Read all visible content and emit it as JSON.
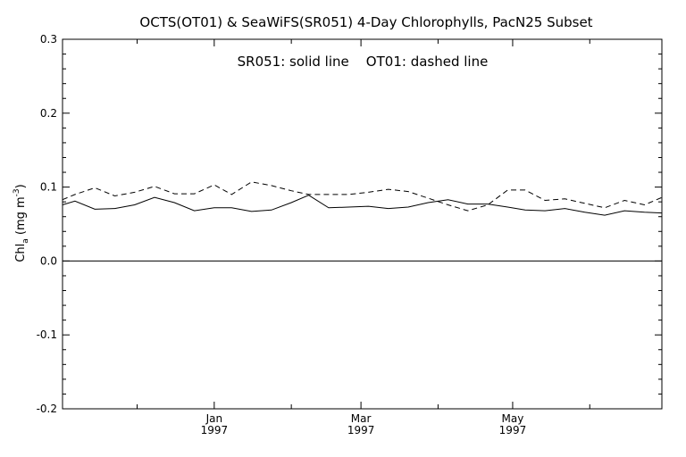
{
  "chart_data": {
    "type": "line",
    "title": "OCTS(OT01) & SeaWiFS(SR051) 4-Day Chlorophylls, PacN25 Subset",
    "annotation": "SR051: solid line    OT01: dashed line",
    "ylabel": {
      "main": "Chl",
      "sub": "a",
      "unit": "(mg m",
      "sup": "-3",
      "close": ")"
    },
    "ylim": [
      -0.2,
      0.3
    ],
    "xlim": [
      "1996-11-01",
      "1997-06-30"
    ],
    "yticks": [
      {
        "value": 0.3,
        "label": "0.3"
      },
      {
        "value": 0.2,
        "label": "0.2"
      },
      {
        "value": 0.1,
        "label": "0.1"
      },
      {
        "value": 0.0,
        "label": "0.0"
      },
      {
        "value": -0.1,
        "label": "-0.1"
      },
      {
        "value": -0.2,
        "label": "-0.2"
      }
    ],
    "xticks_major": [
      {
        "date": "1997-01-01",
        "month": "Jan",
        "year": "1997"
      },
      {
        "date": "1997-03-01",
        "month": "Mar",
        "year": "1997"
      },
      {
        "date": "1997-05-01",
        "month": "May",
        "year": "1997"
      }
    ],
    "xticks_minor": [
      "1996-12-01",
      "1997-02-01",
      "1997-04-01",
      "1997-06-01"
    ],
    "zero_line": 0.0,
    "series": [
      {
        "name": "SR051",
        "style": "solid",
        "x": [
          "1996-11-01",
          "1996-11-06",
          "1996-11-14",
          "1996-11-22",
          "1996-11-30",
          "1996-12-08",
          "1996-12-16",
          "1996-12-24",
          "1997-01-01",
          "1997-01-08",
          "1997-01-16",
          "1997-01-24",
          "1997-02-01",
          "1997-02-08",
          "1997-02-16",
          "1997-02-24",
          "1997-03-04",
          "1997-03-12",
          "1997-03-20",
          "1997-03-28",
          "1997-04-05",
          "1997-04-13",
          "1997-04-21",
          "1997-04-29",
          "1997-05-06",
          "1997-05-14",
          "1997-05-22",
          "1997-05-30",
          "1997-06-07",
          "1997-06-15",
          "1997-06-23",
          "1997-06-30"
        ],
        "values": [
          0.076,
          0.081,
          0.07,
          0.071,
          0.076,
          0.086,
          0.079,
          0.068,
          0.072,
          0.072,
          0.067,
          0.069,
          0.079,
          0.089,
          0.072,
          0.073,
          0.074,
          0.071,
          0.073,
          0.079,
          0.083,
          0.077,
          0.077,
          0.073,
          0.069,
          0.068,
          0.071,
          0.066,
          0.062,
          0.068,
          0.066,
          0.065
        ]
      },
      {
        "name": "OT01",
        "style": "dashed",
        "x": [
          "1996-11-01",
          "1996-11-06",
          "1996-11-14",
          "1996-11-22",
          "1996-11-30",
          "1996-12-08",
          "1996-12-16",
          "1996-12-24",
          "1997-01-01",
          "1997-01-08",
          "1997-01-16",
          "1997-01-24",
          "1997-02-01",
          "1997-02-08",
          "1997-02-16",
          "1997-02-24",
          "1997-03-04",
          "1997-03-12",
          "1997-03-20",
          "1997-03-28",
          "1997-04-05",
          "1997-04-13",
          "1997-04-21",
          "1997-04-29",
          "1997-05-06",
          "1997-05-14",
          "1997-05-22",
          "1997-05-30",
          "1997-06-07",
          "1997-06-15",
          "1997-06-23",
          "1997-06-30"
        ],
        "values": [
          0.083,
          0.09,
          0.099,
          0.088,
          0.093,
          0.101,
          0.091,
          0.091,
          0.103,
          0.09,
          0.107,
          0.102,
          0.095,
          0.09,
          0.09,
          0.09,
          0.093,
          0.097,
          0.094,
          0.085,
          0.076,
          0.068,
          0.076,
          0.096,
          0.096,
          0.082,
          0.084,
          0.078,
          0.072,
          0.082,
          0.076,
          0.086
        ]
      }
    ],
    "grid": false,
    "legend": "none"
  }
}
